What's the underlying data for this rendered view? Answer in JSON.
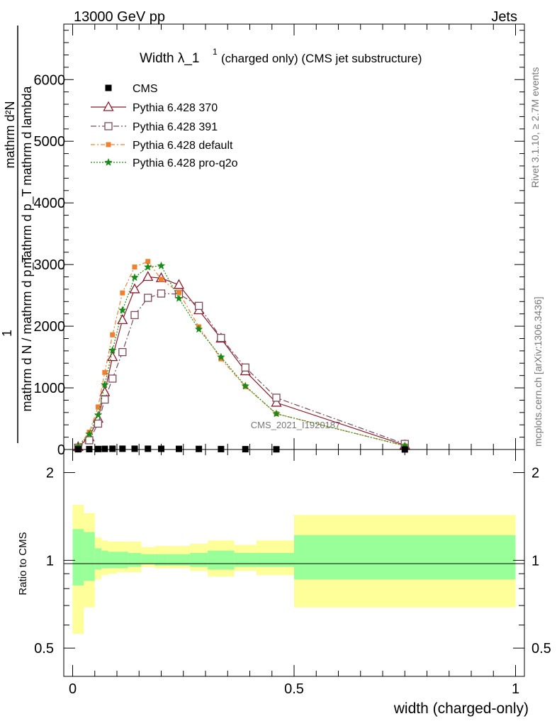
{
  "header": {
    "left": "13000 GeV pp",
    "right": "Jets"
  },
  "main_plot": {
    "title_main": "Width λ_1",
    "title_sup": "1",
    "title_rest": "(charged only) (CMS jet substructure)",
    "ylabel_top": [
      "mathrm d²N",
      "mathrm d p_T mathrm d lambda"
    ],
    "ylabel_bottom": [
      "1",
      "mathrm d N / mathrm d p_T"
    ],
    "watermark": "CMS_2021_I1920187",
    "yticks": [
      "0",
      "1000",
      "2000",
      "3000",
      "4000",
      "5000",
      "6000"
    ]
  },
  "side_labels": {
    "rivet": "Rivet 3.1.10, ≥ 2.7M events",
    "mcplots": "mcplots.cern.ch [arXiv:1306.3436]"
  },
  "ratio_plot": {
    "ylabel": "Ratio to CMS",
    "yticks": [
      "0.5",
      "1",
      "2"
    ],
    "xticks": [
      "0",
      "0.5",
      "1"
    ],
    "xlabel": "width (charged-only)"
  },
  "colors": {
    "cms": "#000000",
    "p370": "#8b1a2b",
    "p391": "#7a4a5a",
    "pdefault": "#f08030",
    "pq2o": "#1a8a1a",
    "band_inner": "#99ff99",
    "band_outer": "#ffff99"
  },
  "chart_data": [
    {
      "type": "scatter",
      "ylim": [
        0,
        6900
      ],
      "xlim": [
        -0.02,
        1.02
      ],
      "legend_position": "top-left",
      "x": [
        0.0125,
        0.0375,
        0.0575,
        0.0725,
        0.09,
        0.1125,
        0.14,
        0.17,
        0.2,
        0.24,
        0.285,
        0.335,
        0.39,
        0.46,
        0.75
      ],
      "series": [
        {
          "name": "CMS",
          "values": [
            4,
            6,
            8,
            10,
            12,
            12,
            12,
            12,
            11,
            10,
            9,
            7,
            5,
            3,
            1
          ]
        },
        {
          "name": "Pythia 6.428 370",
          "values": [
            40,
            200,
            500,
            930,
            1500,
            2100,
            2600,
            2800,
            2780,
            2670,
            2260,
            1800,
            1270,
            760,
            70
          ]
        },
        {
          "name": "Pythia 6.428 391",
          "values": [
            30,
            150,
            420,
            810,
            1150,
            1580,
            2180,
            2460,
            2530,
            2520,
            2330,
            1810,
            1330,
            840,
            90
          ]
        },
        {
          "name": "Pythia 6.428 default",
          "values": [
            50,
            280,
            690,
            1250,
            1860,
            2540,
            2960,
            3050,
            2760,
            2550,
            1990,
            1470,
            1020,
            580,
            60
          ]
        },
        {
          "name": "Pythia 6.428 pro-q2o",
          "values": [
            50,
            250,
            560,
            1050,
            1610,
            2260,
            2790,
            2960,
            2980,
            2450,
            1950,
            1500,
            1030,
            580,
            60
          ]
        }
      ]
    },
    {
      "type": "area",
      "ylim": [
        0.4,
        2.4
      ],
      "log_scale": true,
      "x_edges": [
        0,
        0.025,
        0.05,
        0.065,
        0.08,
        0.1,
        0.125,
        0.155,
        0.185,
        0.215,
        0.265,
        0.305,
        0.365,
        0.415,
        0.5,
        1.0
      ],
      "bands": [
        {
          "lo": 0.56,
          "hi": 1.55
        },
        {
          "lo": 0.69,
          "hi": 1.45
        },
        {
          "lo": 0.86,
          "hi": 1.2
        },
        {
          "lo": 0.89,
          "hi": 1.17
        },
        {
          "lo": 0.9,
          "hi": 1.16
        },
        {
          "lo": 0.91,
          "hi": 1.16
        },
        {
          "lo": 0.91,
          "hi": 1.16
        },
        {
          "lo": 0.95,
          "hi": 1.11
        },
        {
          "lo": 0.94,
          "hi": 1.12
        },
        {
          "lo": 0.94,
          "hi": 1.12
        },
        {
          "lo": 0.92,
          "hi": 1.14
        },
        {
          "lo": 0.88,
          "hi": 1.17
        },
        {
          "lo": 0.92,
          "hi": 1.13
        },
        {
          "lo": 0.89,
          "hi": 1.17
        },
        {
          "lo": 0.69,
          "hi": 1.43
        }
      ],
      "inner_bands": [
        {
          "lo": 0.82,
          "hi": 1.28
        },
        {
          "lo": 0.85,
          "hi": 1.25
        },
        {
          "lo": 0.93,
          "hi": 1.1
        },
        {
          "lo": 0.94,
          "hi": 1.08
        },
        {
          "lo": 0.94,
          "hi": 1.07
        },
        {
          "lo": 0.94,
          "hi": 1.07
        },
        {
          "lo": 0.95,
          "hi": 1.06
        },
        {
          "lo": 0.97,
          "hi": 1.05
        },
        {
          "lo": 0.96,
          "hi": 1.05
        },
        {
          "lo": 0.96,
          "hi": 1.05
        },
        {
          "lo": 0.95,
          "hi": 1.06
        },
        {
          "lo": 0.93,
          "hi": 1.08
        },
        {
          "lo": 0.95,
          "hi": 1.06
        },
        {
          "lo": 0.95,
          "hi": 1.06
        },
        {
          "lo": 0.86,
          "hi": 1.22
        }
      ]
    }
  ]
}
